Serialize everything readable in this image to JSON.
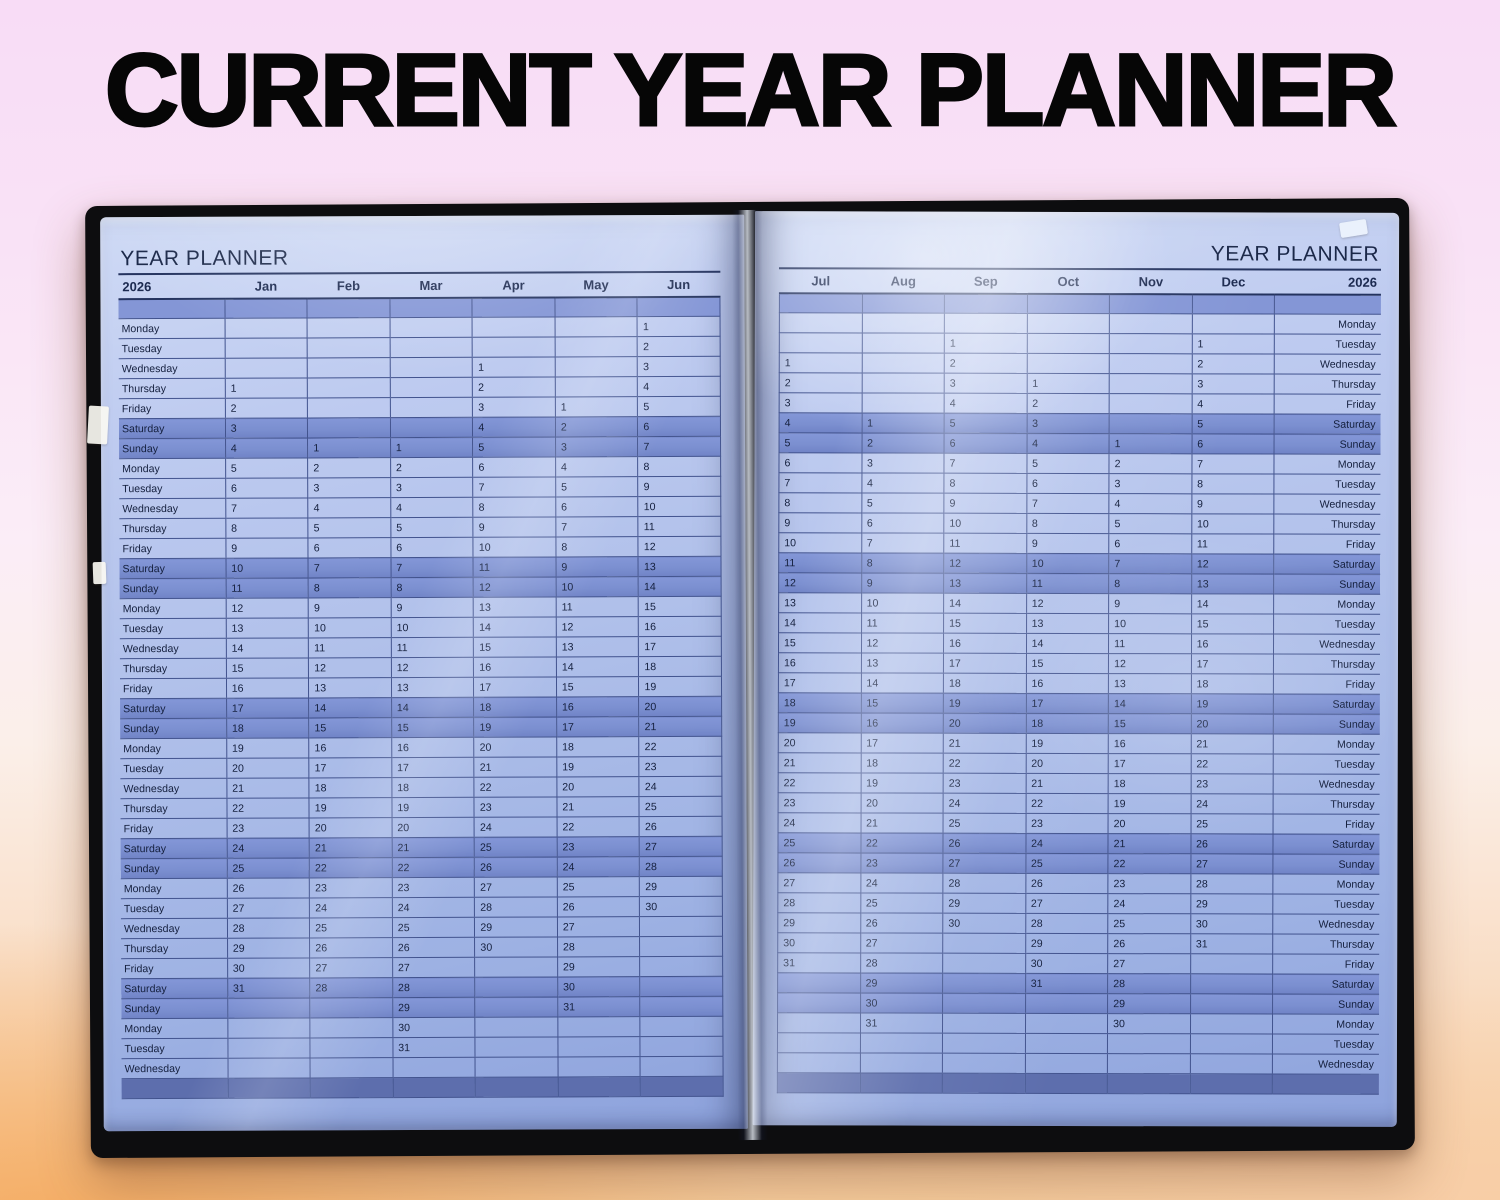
{
  "title": "CURRENT YEAR PLANNER",
  "year": "2026",
  "colors": {
    "background_pink": "#f8dcf6",
    "background_peach": "#f7cd9d",
    "cover_black": "#0d0d0f",
    "page_blue": "#b0c0ea",
    "weekend_blue": "#7b8fd0",
    "bar_blue": "#8496d6",
    "footer_blue": "#5d6ead",
    "grid_line": "#42538e",
    "text_navy": "#141f3d"
  },
  "left_page": {
    "header_title": "YEAR PLANNER",
    "year": "2026",
    "months": [
      "Jan",
      "Feb",
      "Mar",
      "Apr",
      "May",
      "Jun"
    ],
    "rows": [
      {
        "day": "Monday",
        "cells": [
          "",
          "",
          "",
          "",
          "",
          "1"
        ]
      },
      {
        "day": "Tuesday",
        "cells": [
          "",
          "",
          "",
          "",
          "",
          "2"
        ]
      },
      {
        "day": "Wednesday",
        "cells": [
          "",
          "",
          "",
          "1",
          "",
          "3"
        ]
      },
      {
        "day": "Thursday",
        "cells": [
          "1",
          "",
          "",
          "2",
          "",
          "4"
        ]
      },
      {
        "day": "Friday",
        "cells": [
          "2",
          "",
          "",
          "3",
          "1",
          "5"
        ]
      },
      {
        "day": "Saturday",
        "cells": [
          "3",
          "",
          "",
          "4",
          "2",
          "6"
        ]
      },
      {
        "day": "Sunday",
        "cells": [
          "4",
          "1",
          "1",
          "5",
          "3",
          "7"
        ]
      },
      {
        "day": "Monday",
        "cells": [
          "5",
          "2",
          "2",
          "6",
          "4",
          "8"
        ]
      },
      {
        "day": "Tuesday",
        "cells": [
          "6",
          "3",
          "3",
          "7",
          "5",
          "9"
        ]
      },
      {
        "day": "Wednesday",
        "cells": [
          "7",
          "4",
          "4",
          "8",
          "6",
          "10"
        ]
      },
      {
        "day": "Thursday",
        "cells": [
          "8",
          "5",
          "5",
          "9",
          "7",
          "11"
        ]
      },
      {
        "day": "Friday",
        "cells": [
          "9",
          "6",
          "6",
          "10",
          "8",
          "12"
        ]
      },
      {
        "day": "Saturday",
        "cells": [
          "10",
          "7",
          "7",
          "11",
          "9",
          "13"
        ]
      },
      {
        "day": "Sunday",
        "cells": [
          "11",
          "8",
          "8",
          "12",
          "10",
          "14"
        ]
      },
      {
        "day": "Monday",
        "cells": [
          "12",
          "9",
          "9",
          "13",
          "11",
          "15"
        ]
      },
      {
        "day": "Tuesday",
        "cells": [
          "13",
          "10",
          "10",
          "14",
          "12",
          "16"
        ]
      },
      {
        "day": "Wednesday",
        "cells": [
          "14",
          "11",
          "11",
          "15",
          "13",
          "17"
        ]
      },
      {
        "day": "Thursday",
        "cells": [
          "15",
          "12",
          "12",
          "16",
          "14",
          "18"
        ]
      },
      {
        "day": "Friday",
        "cells": [
          "16",
          "13",
          "13",
          "17",
          "15",
          "19"
        ]
      },
      {
        "day": "Saturday",
        "cells": [
          "17",
          "14",
          "14",
          "18",
          "16",
          "20"
        ]
      },
      {
        "day": "Sunday",
        "cells": [
          "18",
          "15",
          "15",
          "19",
          "17",
          "21"
        ]
      },
      {
        "day": "Monday",
        "cells": [
          "19",
          "16",
          "16",
          "20",
          "18",
          "22"
        ]
      },
      {
        "day": "Tuesday",
        "cells": [
          "20",
          "17",
          "17",
          "21",
          "19",
          "23"
        ]
      },
      {
        "day": "Wednesday",
        "cells": [
          "21",
          "18",
          "18",
          "22",
          "20",
          "24"
        ]
      },
      {
        "day": "Thursday",
        "cells": [
          "22",
          "19",
          "19",
          "23",
          "21",
          "25"
        ]
      },
      {
        "day": "Friday",
        "cells": [
          "23",
          "20",
          "20",
          "24",
          "22",
          "26"
        ]
      },
      {
        "day": "Saturday",
        "cells": [
          "24",
          "21",
          "21",
          "25",
          "23",
          "27"
        ]
      },
      {
        "day": "Sunday",
        "cells": [
          "25",
          "22",
          "22",
          "26",
          "24",
          "28"
        ]
      },
      {
        "day": "Monday",
        "cells": [
          "26",
          "23",
          "23",
          "27",
          "25",
          "29"
        ]
      },
      {
        "day": "Tuesday",
        "cells": [
          "27",
          "24",
          "24",
          "28",
          "26",
          "30"
        ]
      },
      {
        "day": "Wednesday",
        "cells": [
          "28",
          "25",
          "25",
          "29",
          "27",
          ""
        ]
      },
      {
        "day": "Thursday",
        "cells": [
          "29",
          "26",
          "26",
          "30",
          "28",
          ""
        ]
      },
      {
        "day": "Friday",
        "cells": [
          "30",
          "27",
          "27",
          "",
          "29",
          ""
        ]
      },
      {
        "day": "Saturday",
        "cells": [
          "31",
          "28",
          "28",
          "",
          "30",
          ""
        ]
      },
      {
        "day": "Sunday",
        "cells": [
          "",
          "",
          "29",
          "",
          "31",
          ""
        ]
      },
      {
        "day": "Monday",
        "cells": [
          "",
          "",
          "30",
          "",
          "",
          ""
        ]
      },
      {
        "day": "Tuesday",
        "cells": [
          "",
          "",
          "31",
          "",
          "",
          ""
        ]
      },
      {
        "day": "Wednesday",
        "cells": [
          "",
          "",
          "",
          "",
          "",
          ""
        ]
      }
    ]
  },
  "right_page": {
    "header_title": "YEAR PLANNER",
    "year": "2026",
    "months": [
      "Jul",
      "Aug",
      "Sep",
      "Oct",
      "Nov",
      "Dec"
    ],
    "rows": [
      {
        "day": "Monday",
        "cells": [
          "",
          "",
          "",
          "",
          "",
          ""
        ]
      },
      {
        "day": "Tuesday",
        "cells": [
          "",
          "",
          "1",
          "",
          "",
          "1"
        ]
      },
      {
        "day": "Wednesday",
        "cells": [
          "1",
          "",
          "2",
          "",
          "",
          "2"
        ]
      },
      {
        "day": "Thursday",
        "cells": [
          "2",
          "",
          "3",
          "1",
          "",
          "3"
        ]
      },
      {
        "day": "Friday",
        "cells": [
          "3",
          "",
          "4",
          "2",
          "",
          "4"
        ]
      },
      {
        "day": "Saturday",
        "cells": [
          "4",
          "1",
          "5",
          "3",
          "",
          "5"
        ]
      },
      {
        "day": "Sunday",
        "cells": [
          "5",
          "2",
          "6",
          "4",
          "1",
          "6"
        ]
      },
      {
        "day": "Monday",
        "cells": [
          "6",
          "3",
          "7",
          "5",
          "2",
          "7"
        ]
      },
      {
        "day": "Tuesday",
        "cells": [
          "7",
          "4",
          "8",
          "6",
          "3",
          "8"
        ]
      },
      {
        "day": "Wednesday",
        "cells": [
          "8",
          "5",
          "9",
          "7",
          "4",
          "9"
        ]
      },
      {
        "day": "Thursday",
        "cells": [
          "9",
          "6",
          "10",
          "8",
          "5",
          "10"
        ]
      },
      {
        "day": "Friday",
        "cells": [
          "10",
          "7",
          "11",
          "9",
          "6",
          "11"
        ]
      },
      {
        "day": "Saturday",
        "cells": [
          "11",
          "8",
          "12",
          "10",
          "7",
          "12"
        ]
      },
      {
        "day": "Sunday",
        "cells": [
          "12",
          "9",
          "13",
          "11",
          "8",
          "13"
        ]
      },
      {
        "day": "Monday",
        "cells": [
          "13",
          "10",
          "14",
          "12",
          "9",
          "14"
        ]
      },
      {
        "day": "Tuesday",
        "cells": [
          "14",
          "11",
          "15",
          "13",
          "10",
          "15"
        ]
      },
      {
        "day": "Wednesday",
        "cells": [
          "15",
          "12",
          "16",
          "14",
          "11",
          "16"
        ]
      },
      {
        "day": "Thursday",
        "cells": [
          "16",
          "13",
          "17",
          "15",
          "12",
          "17"
        ]
      },
      {
        "day": "Friday",
        "cells": [
          "17",
          "14",
          "18",
          "16",
          "13",
          "18"
        ]
      },
      {
        "day": "Saturday",
        "cells": [
          "18",
          "15",
          "19",
          "17",
          "14",
          "19"
        ]
      },
      {
        "day": "Sunday",
        "cells": [
          "19",
          "16",
          "20",
          "18",
          "15",
          "20"
        ]
      },
      {
        "day": "Monday",
        "cells": [
          "20",
          "17",
          "21",
          "19",
          "16",
          "21"
        ]
      },
      {
        "day": "Tuesday",
        "cells": [
          "21",
          "18",
          "22",
          "20",
          "17",
          "22"
        ]
      },
      {
        "day": "Wednesday",
        "cells": [
          "22",
          "19",
          "23",
          "21",
          "18",
          "23"
        ]
      },
      {
        "day": "Thursday",
        "cells": [
          "23",
          "20",
          "24",
          "22",
          "19",
          "24"
        ]
      },
      {
        "day": "Friday",
        "cells": [
          "24",
          "21",
          "25",
          "23",
          "20",
          "25"
        ]
      },
      {
        "day": "Saturday",
        "cells": [
          "25",
          "22",
          "26",
          "24",
          "21",
          "26"
        ]
      },
      {
        "day": "Sunday",
        "cells": [
          "26",
          "23",
          "27",
          "25",
          "22",
          "27"
        ]
      },
      {
        "day": "Monday",
        "cells": [
          "27",
          "24",
          "28",
          "26",
          "23",
          "28"
        ]
      },
      {
        "day": "Tuesday",
        "cells": [
          "28",
          "25",
          "29",
          "27",
          "24",
          "29"
        ]
      },
      {
        "day": "Wednesday",
        "cells": [
          "29",
          "26",
          "30",
          "28",
          "25",
          "30"
        ]
      },
      {
        "day": "Thursday",
        "cells": [
          "30",
          "27",
          "",
          "29",
          "26",
          "31"
        ]
      },
      {
        "day": "Friday",
        "cells": [
          "31",
          "28",
          "",
          "30",
          "27",
          ""
        ]
      },
      {
        "day": "Saturday",
        "cells": [
          "",
          "29",
          "",
          "31",
          "28",
          ""
        ]
      },
      {
        "day": "Sunday",
        "cells": [
          "",
          "30",
          "",
          "",
          "29",
          ""
        ]
      },
      {
        "day": "Monday",
        "cells": [
          "",
          "31",
          "",
          "",
          "30",
          ""
        ]
      },
      {
        "day": "Tuesday",
        "cells": [
          "",
          "",
          "",
          "",
          "",
          ""
        ]
      },
      {
        "day": "Wednesday",
        "cells": [
          "",
          "",
          "",
          "",
          "",
          ""
        ]
      }
    ]
  }
}
